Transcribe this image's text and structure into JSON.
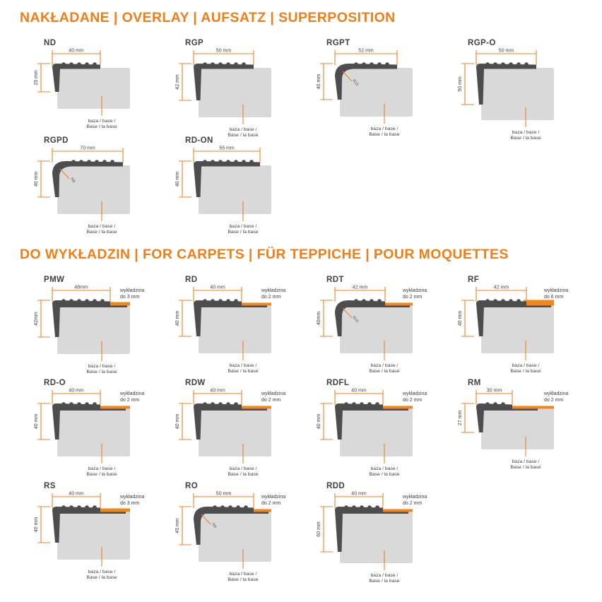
{
  "page": {
    "accent_color": "#EE8122",
    "profile_color": "#4D4D4F",
    "base_color": "#D9D9D9",
    "carpet_color": "#F2861B",
    "base_label_line1": "baza / base /",
    "base_label_line2": "Base / la base"
  },
  "sections": [
    {
      "id": "overlay",
      "title": "NAKŁADANE | OVERLAY | AUFSATZ | SUPERPOSITION",
      "profiles": [
        {
          "code": "ND",
          "width_mm": 40,
          "height_mm": 25,
          "width_label": "40 mm",
          "height_label": "25 mm"
        },
        {
          "code": "RGP",
          "width_mm": 50,
          "height_mm": 42,
          "width_label": "50 mm",
          "height_label": "42 mm"
        },
        {
          "code": "RGPT",
          "width_mm": 52,
          "height_mm": 40,
          "width_label": "52 mm",
          "height_label": "40 mm",
          "rounded": true,
          "radius_label": "R15"
        },
        {
          "code": "RGP-O",
          "width_mm": 50,
          "height_mm": 50,
          "width_label": "50 mm",
          "height_label": "50 mm"
        },
        {
          "code": "RGPD",
          "width_mm": 70,
          "height_mm": 40,
          "width_label": "70 mm",
          "height_label": "40 mm",
          "rounded": true,
          "radius_label": "R8"
        },
        {
          "code": "RD-ON",
          "width_mm": 55,
          "height_mm": 40,
          "width_label": "55 mm",
          "height_label": "40 mm"
        }
      ]
    },
    {
      "id": "carpets",
      "title": "DO WYKŁADZIN | FOR CARPETS | FÜR TEPPICHE | POUR MOQUETTES",
      "profiles": [
        {
          "code": "PMW",
          "width_mm": 48,
          "height_mm": 42,
          "width_label": "48mm",
          "height_label": "42mm",
          "carpet_mm": 3,
          "carpet_label_line1": "wykładzina",
          "carpet_label_line2": "do 3 mm"
        },
        {
          "code": "RD",
          "width_mm": 40,
          "height_mm": 40,
          "width_label": "40 mm",
          "height_label": "40 mm",
          "carpet_mm": 2,
          "carpet_label_line1": "wykładzina",
          "carpet_label_line2": "do 2 mm"
        },
        {
          "code": "RDT",
          "width_mm": 42,
          "height_mm": 40,
          "width_label": "42 mm",
          "height_label": "40mm",
          "carpet_mm": 2,
          "carpet_label_line1": "wykładzina",
          "carpet_label_line2": "do 2 mm",
          "rounded": true,
          "radius_label": "R15"
        },
        {
          "code": "RF",
          "width_mm": 42,
          "height_mm": 40,
          "width_label": "42 mm",
          "height_label": "40 mm",
          "carpet_mm": 6,
          "carpet_label_line1": "wykładzina",
          "carpet_label_line2": "do 6 mm"
        },
        {
          "code": "RD-O",
          "width_mm": 40,
          "height_mm": 40,
          "width_label": "40 mm",
          "height_label": "40 mm",
          "carpet_mm": 2,
          "carpet_label_line1": "wykładzina",
          "carpet_label_line2": "do 2 mm"
        },
        {
          "code": "RDW",
          "width_mm": 40,
          "height_mm": 40,
          "width_label": "40 mm",
          "height_label": "40 mm",
          "carpet_mm": 2,
          "carpet_label_line1": "wykładzina",
          "carpet_label_line2": "do 2 mm"
        },
        {
          "code": "RDFL",
          "width_mm": 40,
          "height_mm": 40,
          "width_label": "40 mm",
          "height_label": "40 mm",
          "carpet_mm": 2,
          "carpet_label_line1": "wykładzina",
          "carpet_label_line2": "do 2 mm"
        },
        {
          "code": "RM",
          "width_mm": 30,
          "height_mm": 27,
          "width_label": "30 mm",
          "height_label": "27 mm",
          "carpet_mm": 2,
          "carpet_label_line1": "wykładzina",
          "carpet_label_line2": "do 2 mm"
        },
        {
          "code": "RS",
          "width_mm": 40,
          "height_mm": 40,
          "width_label": "40 mm",
          "height_label": "40 mm",
          "carpet_mm": 3,
          "carpet_label_line1": "wykładzina",
          "carpet_label_line2": "do 3 mm"
        },
        {
          "code": "RO",
          "width_mm": 50,
          "height_mm": 45,
          "width_label": "50 mm",
          "height_label": "45 mm",
          "carpet_mm": 2,
          "carpet_label_line1": "wykładzina",
          "carpet_label_line2": "do 2 mm",
          "rounded": true,
          "radius_label": "R8"
        },
        {
          "code": "RDD",
          "width_mm": 40,
          "height_mm": 60,
          "width_label": "40 mm",
          "height_label": "60 mm",
          "carpet_mm": 2,
          "carpet_label_line1": "wykładzina",
          "carpet_label_line2": "do 2 mm"
        }
      ]
    }
  ]
}
